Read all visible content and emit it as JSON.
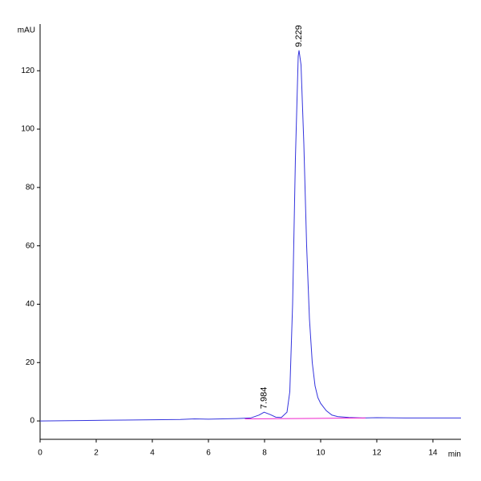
{
  "chart_data": {
    "type": "line",
    "y_label": "mAU",
    "x_label": "min",
    "x": [
      0,
      1,
      2,
      3,
      4,
      5,
      5.5,
      6,
      6.5,
      7,
      7.5,
      7.8,
      7.984,
      8.2,
      8.4,
      8.6,
      8.8,
      8.9,
      9.0,
      9.1,
      9.2,
      9.229,
      9.3,
      9.4,
      9.5,
      9.6,
      9.7,
      9.8,
      9.9,
      10.0,
      10.2,
      10.4,
      10.6,
      11,
      11.5,
      12,
      13,
      14,
      15
    ],
    "series": [
      {
        "name": "signal",
        "color": "#3333dd",
        "values": [
          0,
          0.1,
          0.2,
          0.3,
          0.4,
          0.5,
          0.7,
          0.6,
          0.7,
          0.8,
          1.0,
          2.0,
          3.0,
          2.2,
          1.3,
          1.2,
          3,
          10,
          40,
          90,
          125,
          127,
          122,
          95,
          60,
          35,
          20,
          12,
          8,
          6,
          3.5,
          2,
          1.5,
          1.2,
          1,
          1.1,
          1.0,
          1.0,
          1.0
        ]
      }
    ],
    "baseline": {
      "color": "#ee22cc",
      "x": [
        7.3,
        11.6
      ],
      "values": [
        0.7,
        1.0
      ]
    },
    "peaks": [
      {
        "x": 7.984,
        "height": 3
      },
      {
        "x": 9.229,
        "height": 127
      }
    ],
    "xlim": [
      0,
      15
    ],
    "xticks": [
      0,
      2,
      4,
      6,
      8,
      10,
      12,
      14
    ],
    "ylim": [
      -6.3,
      136
    ],
    "yticks": [
      0,
      20,
      40,
      60,
      80,
      100,
      120
    ]
  }
}
